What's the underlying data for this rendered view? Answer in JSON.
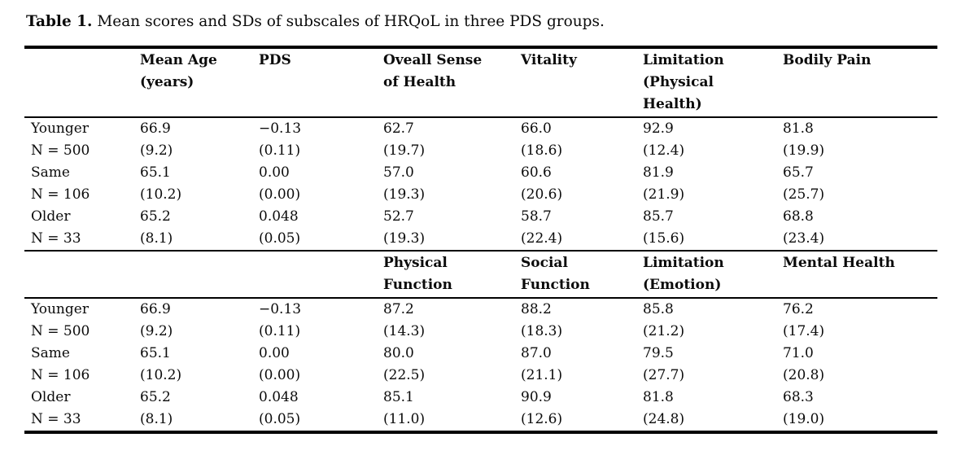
{
  "caption": {
    "label": "Table 1.",
    "text": " Mean scores and SDs of subscales of HRQoL in three PDS groups."
  },
  "colors": {
    "text": "#0b0b0b",
    "rule": "#000000",
    "background": "#ffffff"
  },
  "table": {
    "sections": [
      {
        "headers": [
          "",
          "Mean Age\n(years)",
          "PDS",
          "Oveall Sense\nof Health",
          "Vitality",
          "Limitation\n(Physical\nHealth)",
          "Bodily Pain"
        ],
        "rows": [
          [
            "Younger",
            "66.9",
            "−0.13",
            "62.7",
            "66.0",
            "92.9",
            "81.8"
          ],
          [
            "N = 500",
            "(9.2)",
            "(0.11)",
            "(19.7)",
            "(18.6)",
            "(12.4)",
            "(19.9)"
          ],
          [
            "Same",
            "65.1",
            "0.00",
            "57.0",
            "60.6",
            "81.9",
            "65.7"
          ],
          [
            "N = 106",
            "(10.2)",
            "(0.00)",
            "(19.3)",
            "(20.6)",
            "(21.9)",
            "(25.7)"
          ],
          [
            "Older",
            "65.2",
            "0.048",
            "52.7",
            "58.7",
            "85.7",
            "68.8"
          ],
          [
            "N = 33",
            "(8.1)",
            "(0.05)",
            "(19.3)",
            "(22.4)",
            "(15.6)",
            "(23.4)"
          ]
        ]
      },
      {
        "headers": [
          "",
          "",
          "",
          "Physical\nFunction",
          "Social\nFunction",
          "Limitation\n(Emotion)",
          "Mental Health"
        ],
        "rows": [
          [
            "Younger",
            "66.9",
            "−0.13",
            "87.2",
            "88.2",
            "85.8",
            "76.2"
          ],
          [
            "N = 500",
            "(9.2)",
            "(0.11)",
            "(14.3)",
            "(18.3)",
            "(21.2)",
            "(17.4)"
          ],
          [
            "Same",
            "65.1",
            "0.00",
            "80.0",
            "87.0",
            "79.5",
            "71.0"
          ],
          [
            "N = 106",
            "(10.2)",
            "(0.00)",
            "(22.5)",
            "(21.1)",
            "(27.7)",
            "(20.8)"
          ],
          [
            "Older",
            "65.2",
            "0.048",
            "85.1",
            "90.9",
            "81.8",
            "68.3"
          ],
          [
            "N = 33",
            "(8.1)",
            "(0.05)",
            "(11.0)",
            "(12.6)",
            "(24.8)",
            "(19.0)"
          ]
        ]
      }
    ]
  }
}
